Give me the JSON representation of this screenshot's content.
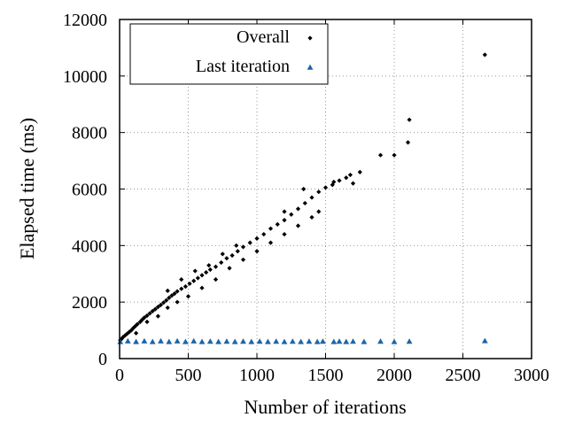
{
  "chart_data": {
    "type": "scatter",
    "xlabel": "Number of iterations",
    "ylabel": "Elapsed time (ms)",
    "xlim": [
      0,
      3000
    ],
    "ylim": [
      0,
      12000
    ],
    "xticks": [
      0,
      500,
      1000,
      1500,
      2000,
      2500,
      3000
    ],
    "yticks": [
      0,
      2000,
      4000,
      6000,
      8000,
      10000,
      12000
    ],
    "grid": "dotted",
    "legend_position": "top-left",
    "series": [
      {
        "name": "Overall",
        "marker": "diamond",
        "color": "#000000",
        "points": [
          [
            5,
            650
          ],
          [
            15,
            700
          ],
          [
            25,
            760
          ],
          [
            40,
            820
          ],
          [
            55,
            880
          ],
          [
            70,
            940
          ],
          [
            85,
            1000
          ],
          [
            100,
            1080
          ],
          [
            115,
            1150
          ],
          [
            130,
            1220
          ],
          [
            150,
            1300
          ],
          [
            165,
            1380
          ],
          [
            180,
            1450
          ],
          [
            200,
            1520
          ],
          [
            220,
            1600
          ],
          [
            240,
            1680
          ],
          [
            260,
            1750
          ],
          [
            280,
            1830
          ],
          [
            300,
            1900
          ],
          [
            320,
            1980
          ],
          [
            340,
            2060
          ],
          [
            360,
            2150
          ],
          [
            380,
            2230
          ],
          [
            400,
            2300
          ],
          [
            420,
            2380
          ],
          [
            450,
            2470
          ],
          [
            480,
            2550
          ],
          [
            510,
            2650
          ],
          [
            540,
            2750
          ],
          [
            570,
            2850
          ],
          [
            600,
            2950
          ],
          [
            630,
            3050
          ],
          [
            660,
            3150
          ],
          [
            700,
            3250
          ],
          [
            740,
            3400
          ],
          [
            780,
            3550
          ],
          [
            820,
            3650
          ],
          [
            860,
            3800
          ],
          [
            900,
            3950
          ],
          [
            950,
            4100
          ],
          [
            1000,
            4250
          ],
          [
            1050,
            4400
          ],
          [
            1100,
            4600
          ],
          [
            1150,
            4750
          ],
          [
            1200,
            4900
          ],
          [
            1250,
            5100
          ],
          [
            1300,
            5300
          ],
          [
            1350,
            5500
          ],
          [
            1400,
            5700
          ],
          [
            1450,
            5900
          ],
          [
            1500,
            6050
          ],
          [
            1550,
            6150
          ],
          [
            1600,
            6300
          ],
          [
            1650,
            6400
          ],
          [
            1700,
            6200
          ],
          [
            1750,
            6600
          ],
          [
            1900,
            7200
          ],
          [
            2000,
            7200
          ],
          [
            2100,
            7650
          ],
          [
            2110,
            8450
          ],
          [
            2660,
            10750
          ],
          [
            120,
            900
          ],
          [
            200,
            1300
          ],
          [
            280,
            1500
          ],
          [
            350,
            1800
          ],
          [
            420,
            2000
          ],
          [
            500,
            2200
          ],
          [
            600,
            2500
          ],
          [
            700,
            2800
          ],
          [
            800,
            3200
          ],
          [
            900,
            3500
          ],
          [
            1000,
            3800
          ],
          [
            1100,
            4100
          ],
          [
            1200,
            4400
          ],
          [
            1300,
            4700
          ],
          [
            1400,
            5000
          ],
          [
            1450,
            5200
          ],
          [
            1560,
            6250
          ],
          [
            1680,
            6500
          ],
          [
            1340,
            6000
          ],
          [
            1200,
            5200
          ],
          [
            350,
            2400
          ],
          [
            450,
            2800
          ],
          [
            550,
            3100
          ],
          [
            650,
            3300
          ],
          [
            750,
            3700
          ],
          [
            850,
            4000
          ]
        ]
      },
      {
        "name": "Last iteration",
        "marker": "triangle",
        "color": "#1a66a8",
        "points": [
          [
            5,
            600
          ],
          [
            60,
            620
          ],
          [
            120,
            600
          ],
          [
            180,
            620
          ],
          [
            240,
            600
          ],
          [
            300,
            620
          ],
          [
            360,
            600
          ],
          [
            420,
            620
          ],
          [
            480,
            600
          ],
          [
            540,
            620
          ],
          [
            600,
            600
          ],
          [
            660,
            610
          ],
          [
            720,
            600
          ],
          [
            780,
            610
          ],
          [
            840,
            600
          ],
          [
            900,
            610
          ],
          [
            960,
            600
          ],
          [
            1020,
            610
          ],
          [
            1080,
            600
          ],
          [
            1140,
            610
          ],
          [
            1200,
            600
          ],
          [
            1260,
            610
          ],
          [
            1320,
            600
          ],
          [
            1380,
            610
          ],
          [
            1440,
            600
          ],
          [
            1480,
            610
          ],
          [
            1560,
            600
          ],
          [
            1600,
            610
          ],
          [
            1650,
            600
          ],
          [
            1700,
            610
          ],
          [
            1780,
            600
          ],
          [
            1900,
            610
          ],
          [
            2000,
            600
          ],
          [
            2110,
            610
          ],
          [
            2660,
            630
          ]
        ]
      }
    ]
  }
}
